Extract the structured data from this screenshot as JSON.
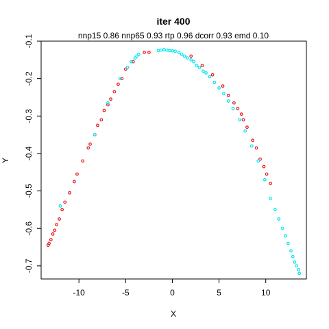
{
  "chart_data": {
    "type": "scatter",
    "title": "iter 400",
    "subtitle": "nnp15 0.86 nnp65 0.93 rtp 0.96 dcorr 0.93 emd 0.10",
    "xlabel": "X",
    "ylabel": "Y",
    "xlim": [
      -14.05,
      14.35
    ],
    "ylim": [
      -0.735,
      -0.1
    ],
    "xticks": [
      -10,
      -5,
      0,
      5,
      10
    ],
    "yticks": [
      -0.1,
      -0.2,
      -0.3,
      -0.4,
      -0.5,
      -0.6,
      -0.7
    ],
    "ytick_labels": [
      "-0.1",
      "-0.2",
      "-0.3",
      "-0.4",
      "-0.5",
      "-0.6",
      "-0.7"
    ],
    "grid": false,
    "legend": "none",
    "colors": {
      "red": "#e41a1c",
      "cyan": "#00e5ee"
    },
    "series": [
      {
        "color": "red",
        "x": [
          -13.3,
          -13.2,
          -13.0,
          -12.8,
          -12.6,
          -12.4,
          -12.1,
          -11.8,
          -11.5,
          -11.0,
          -10.5,
          -10.2,
          -9.6,
          -9.0,
          -8.8,
          -8.3,
          -8.0,
          -7.6,
          -7.3,
          -6.9,
          -6.6,
          -6.2,
          -5.8,
          -5.4,
          -5.0,
          -4.2,
          -3.0,
          -2.5,
          2.0,
          3.2,
          4.3,
          5.4,
          6.0,
          6.6,
          7.0,
          7.4,
          7.6,
          8.0,
          8.6,
          9.0,
          9.4,
          9.8,
          10.1,
          10.5
        ],
        "y": [
          -0.645,
          -0.64,
          -0.63,
          -0.615,
          -0.605,
          -0.59,
          -0.575,
          -0.55,
          -0.53,
          -0.505,
          -0.475,
          -0.455,
          -0.42,
          -0.385,
          -0.375,
          -0.35,
          -0.325,
          -0.31,
          -0.285,
          -0.27,
          -0.255,
          -0.235,
          -0.215,
          -0.2,
          -0.175,
          -0.155,
          -0.13,
          -0.13,
          -0.14,
          -0.165,
          -0.19,
          -0.22,
          -0.245,
          -0.265,
          -0.28,
          -0.295,
          -0.31,
          -0.33,
          -0.365,
          -0.385,
          -0.415,
          -0.435,
          -0.455,
          -0.48
        ]
      },
      {
        "color": "cyan",
        "x": [
          -12.0,
          -8.3,
          -6.9,
          -5.6,
          -4.8,
          -4.4,
          -4.0,
          -3.8,
          -3.6,
          -1.5,
          -1.2,
          -0.9,
          -0.6,
          -0.3,
          0.0,
          0.3,
          0.7,
          1.0,
          1.3,
          1.6,
          2.0,
          2.3,
          2.6,
          2.9,
          3.3,
          3.6,
          4.0,
          4.5,
          5.0,
          5.5,
          6.0,
          6.5,
          7.2,
          7.8,
          8.5,
          9.2,
          9.9,
          10.5,
          11.0,
          11.4,
          11.8,
          12.1,
          12.4,
          12.7,
          12.9,
          13.1,
          13.3,
          13.5,
          13.6
        ],
        "y": [
          -0.54,
          -0.35,
          -0.265,
          -0.2,
          -0.17,
          -0.155,
          -0.145,
          -0.14,
          -0.135,
          -0.125,
          -0.124,
          -0.123,
          -0.124,
          -0.125,
          -0.126,
          -0.127,
          -0.13,
          -0.135,
          -0.14,
          -0.145,
          -0.15,
          -0.155,
          -0.165,
          -0.17,
          -0.18,
          -0.185,
          -0.195,
          -0.21,
          -0.225,
          -0.24,
          -0.26,
          -0.28,
          -0.31,
          -0.34,
          -0.38,
          -0.42,
          -0.47,
          -0.52,
          -0.55,
          -0.575,
          -0.6,
          -0.62,
          -0.64,
          -0.66,
          -0.675,
          -0.69,
          -0.7,
          -0.71,
          -0.72
        ]
      }
    ]
  }
}
